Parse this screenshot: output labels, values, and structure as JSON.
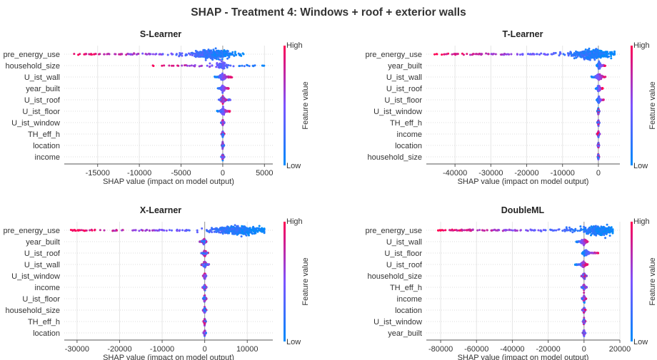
{
  "title": "SHAP - Treatment 4: Windows + roof + exterior walls",
  "colorbar": {
    "high": "High",
    "low": "Low",
    "label": "Feature value",
    "high_color": "#ff0052",
    "low_color": "#008bfb"
  },
  "chart_data": [
    {
      "type": "scatter",
      "title": "S-Learner",
      "xlabel": "SHAP value (impact on model output)",
      "xlim": [
        -19000,
        6000
      ],
      "xticks": [
        -15000,
        -10000,
        -5000,
        0,
        5000
      ],
      "features": [
        "pre_energy_use",
        "household_size",
        "U_ist_wall",
        "year_built",
        "U_ist_roof",
        "U_ist_floor",
        "U_ist_window",
        "TH_eff_h",
        "location",
        "income"
      ],
      "spread": [
        {
          "min": -18000,
          "max": 2500,
          "core": [
            -3000,
            800
          ],
          "corr": 1
        },
        {
          "min": -8500,
          "max": 5000,
          "core": [
            -500,
            300
          ],
          "corr": 1
        },
        {
          "min": -1000,
          "max": 1200,
          "core": [
            -300,
            300
          ],
          "corr": -1
        },
        {
          "min": -600,
          "max": 700,
          "core": [
            -200,
            200
          ],
          "corr": -1
        },
        {
          "min": -500,
          "max": 900,
          "core": [
            -200,
            250
          ],
          "corr": 0
        },
        {
          "min": -700,
          "max": 900,
          "core": [
            -200,
            200
          ],
          "corr": -1
        },
        {
          "min": -200,
          "max": 200,
          "core": [
            -80,
            80
          ],
          "corr": 0
        },
        {
          "min": -200,
          "max": 200,
          "core": [
            -80,
            80
          ],
          "corr": 0
        },
        {
          "min": -150,
          "max": 150,
          "core": [
            -60,
            60
          ],
          "corr": 0
        },
        {
          "min": -200,
          "max": 200,
          "core": [
            -60,
            60
          ],
          "corr": 0
        }
      ]
    },
    {
      "type": "scatter",
      "title": "T-Learner",
      "xlabel": "SHAP value (impact on model output)",
      "xlim": [
        -48000,
        6000
      ],
      "xticks": [
        -40000,
        -30000,
        -20000,
        -10000,
        0
      ],
      "features": [
        "pre_energy_use",
        "year_built",
        "U_ist_wall",
        "U_ist_roof",
        "U_ist_floor",
        "U_ist_window",
        "TH_eff_h",
        "income",
        "location",
        "household_size"
      ],
      "spread": [
        {
          "min": -46000,
          "max": 4500,
          "core": [
            -6000,
            2500
          ],
          "corr": 1
        },
        {
          "min": -500,
          "max": 2000,
          "core": [
            -300,
            800
          ],
          "corr": -1
        },
        {
          "min": -2000,
          "max": 2000,
          "core": [
            -500,
            800
          ],
          "corr": -1
        },
        {
          "min": -800,
          "max": 1200,
          "core": [
            -300,
            500
          ],
          "corr": -1
        },
        {
          "min": -500,
          "max": 1500,
          "core": [
            -200,
            400
          ],
          "corr": -1
        },
        {
          "min": -300,
          "max": 300,
          "core": [
            -100,
            100
          ],
          "corr": 0
        },
        {
          "min": -300,
          "max": 300,
          "core": [
            -100,
            100
          ],
          "corr": 0
        },
        {
          "min": -400,
          "max": 400,
          "core": [
            -100,
            100
          ],
          "corr": 0
        },
        {
          "min": -200,
          "max": 200,
          "core": [
            -80,
            80
          ],
          "corr": 0
        },
        {
          "min": -200,
          "max": 200,
          "core": [
            -80,
            80
          ],
          "corr": 0
        }
      ]
    },
    {
      "type": "scatter",
      "title": "X-Learner",
      "xlabel": "SHAP value (impact on model output)",
      "xlim": [
        -33000,
        16000
      ],
      "xticks": [
        -30000,
        -20000,
        -10000,
        0,
        10000
      ],
      "features": [
        "pre_energy_use",
        "year_built",
        "U_ist_roof",
        "U_ist_wall",
        "U_ist_window",
        "income",
        "U_ist_floor",
        "household_size",
        "TH_eff_h",
        "location"
      ],
      "spread": [
        {
          "min": -31500,
          "max": 14000,
          "core": [
            3000,
            13000
          ],
          "corr": 1
        },
        {
          "min": -1200,
          "max": 500,
          "core": [
            -600,
            300
          ],
          "corr": 0
        },
        {
          "min": -800,
          "max": 800,
          "core": [
            -300,
            300
          ],
          "corr": 0
        },
        {
          "min": -800,
          "max": 1000,
          "core": [
            -300,
            400
          ],
          "corr": 0
        },
        {
          "min": -400,
          "max": 400,
          "core": [
            -150,
            150
          ],
          "corr": 0
        },
        {
          "min": -500,
          "max": 500,
          "core": [
            -150,
            150
          ],
          "corr": 0
        },
        {
          "min": -400,
          "max": 400,
          "core": [
            -150,
            150
          ],
          "corr": 0
        },
        {
          "min": -400,
          "max": 400,
          "core": [
            -150,
            150
          ],
          "corr": 0
        },
        {
          "min": -300,
          "max": 300,
          "core": [
            -100,
            100
          ],
          "corr": 0
        },
        {
          "min": -300,
          "max": 300,
          "core": [
            -100,
            100
          ],
          "corr": 0
        }
      ]
    },
    {
      "type": "scatter",
      "title": "DoubleML",
      "xlabel": "SHAP value (impact on model output)",
      "xlim": [
        -88000,
        20000
      ],
      "xticks": [
        -80000,
        -60000,
        -40000,
        -20000,
        0,
        20000
      ],
      "features": [
        "pre_energy_use",
        "U_ist_wall",
        "U_ist_floor",
        "U_ist_roof",
        "household_size",
        "TH_eff_h",
        "income",
        "location",
        "U_ist_window",
        "year_built"
      ],
      "spread": [
        {
          "min": -82000,
          "max": 16000,
          "core": [
            2000,
            15000
          ],
          "corr": 1
        },
        {
          "min": -4500,
          "max": 2500,
          "core": [
            -1500,
            1500
          ],
          "corr": -1
        },
        {
          "min": -1000,
          "max": 8000,
          "core": [
            -500,
            2500
          ],
          "corr": -1
        },
        {
          "min": -5000,
          "max": 2000,
          "core": [
            -1500,
            800
          ],
          "corr": -1
        },
        {
          "min": -1500,
          "max": 1500,
          "core": [
            -600,
            600
          ],
          "corr": 0
        },
        {
          "min": -1500,
          "max": 1500,
          "core": [
            -600,
            600
          ],
          "corr": 0
        },
        {
          "min": -1200,
          "max": 1200,
          "core": [
            -500,
            500
          ],
          "corr": 0
        },
        {
          "min": -1000,
          "max": 1000,
          "core": [
            -400,
            400
          ],
          "corr": 0
        },
        {
          "min": -800,
          "max": 800,
          "core": [
            -300,
            300
          ],
          "corr": 0
        },
        {
          "min": -800,
          "max": 800,
          "core": [
            -300,
            300
          ],
          "corr": 0
        }
      ]
    }
  ]
}
